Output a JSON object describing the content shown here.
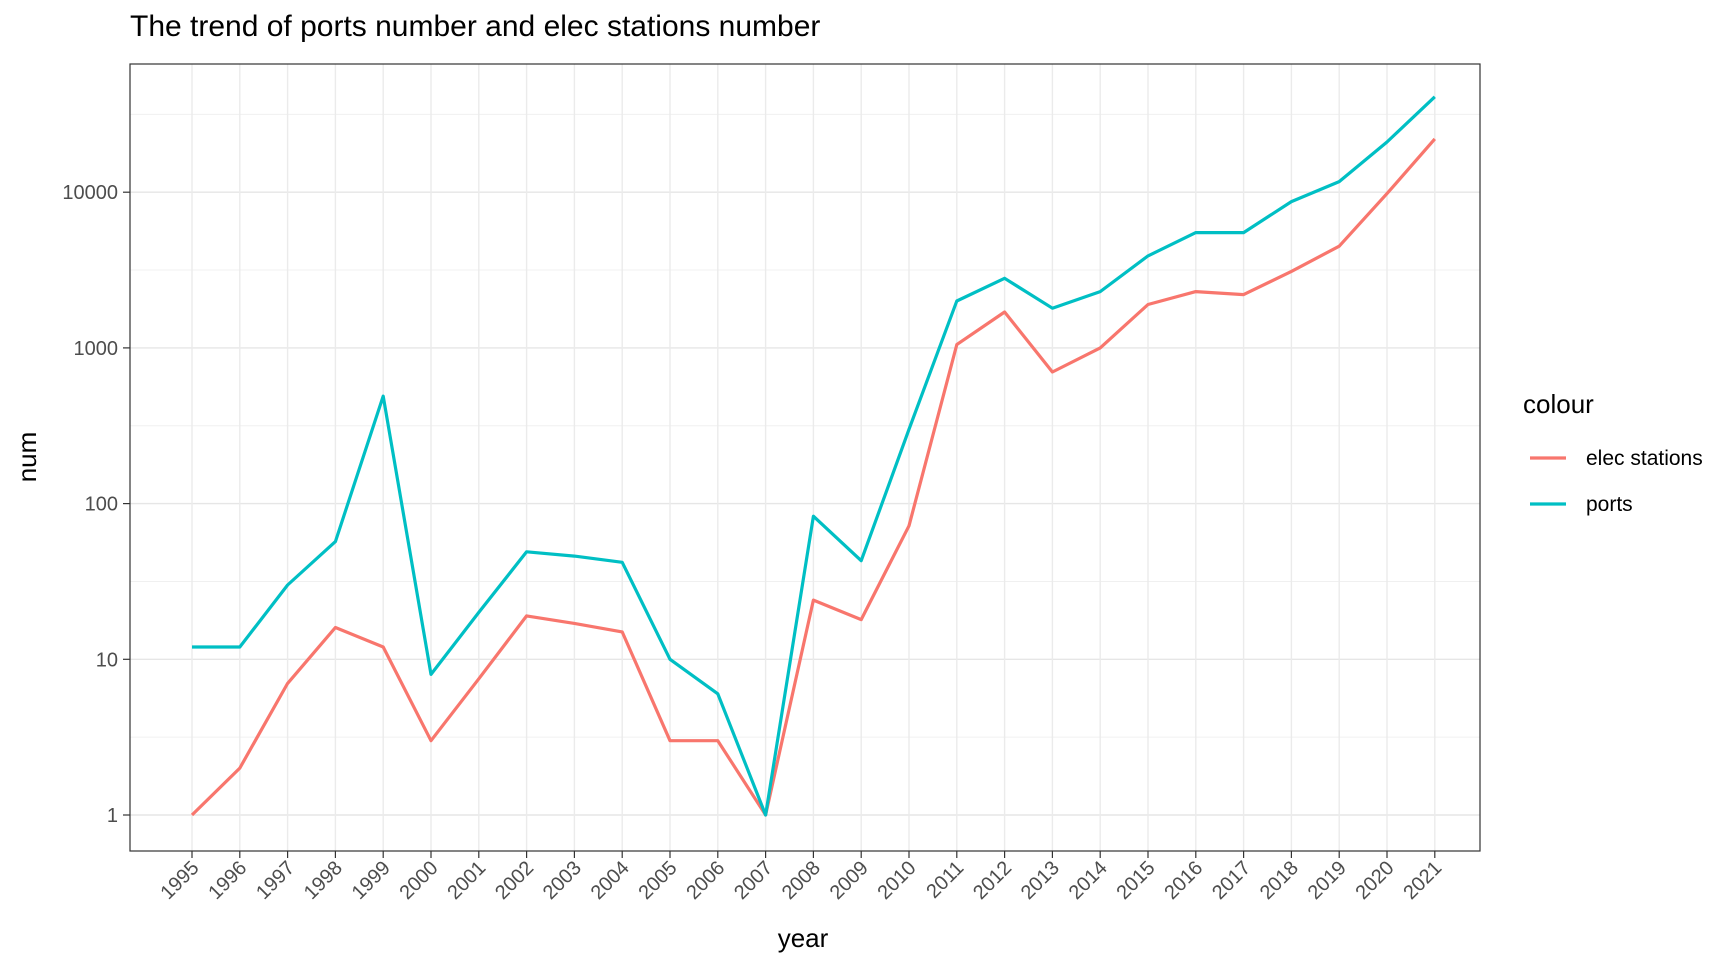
{
  "chart_data": {
    "type": "line",
    "title": "The trend of ports number and elec stations number",
    "xlabel": "year",
    "ylabel": "num",
    "y_scale": "log10",
    "y_ticks": [
      1,
      10,
      100,
      1000,
      10000
    ],
    "y_tick_labels": [
      "1",
      "10",
      "100",
      "1000",
      "10000"
    ],
    "x": [
      1995,
      1996,
      1997,
      1998,
      1999,
      2000,
      2001,
      2002,
      2003,
      2004,
      2005,
      2006,
      2007,
      2008,
      2009,
      2010,
      2011,
      2012,
      2013,
      2014,
      2015,
      2016,
      2017,
      2018,
      2019,
      2020,
      2021
    ],
    "x_tick_labels": [
      "1995",
      "1996",
      "1997",
      "1998",
      "1999",
      "2000",
      "2001",
      "2002",
      "2003",
      "2004",
      "2005",
      "2006",
      "2007",
      "2008",
      "2009",
      "2010",
      "2011",
      "2012",
      "2013",
      "2014",
      "2015",
      "2016",
      "2017",
      "2018",
      "2019",
      "2020",
      "2021"
    ],
    "grid": true,
    "legend": {
      "title": "colour",
      "position": "right"
    },
    "series": [
      {
        "name": "elec stations",
        "color": "#F8766D",
        "values": [
          1,
          2,
          7,
          16,
          12,
          3,
          7.5,
          19,
          17,
          15,
          3,
          3,
          1,
          24,
          18,
          72,
          1050,
          1700,
          700,
          1000,
          1900,
          2300,
          2200,
          3100,
          4500,
          9800,
          22000
        ]
      },
      {
        "name": "ports",
        "color": "#00BFC4",
        "values": [
          12,
          12,
          30,
          57,
          490,
          8,
          20,
          49,
          46,
          42,
          10,
          6,
          1,
          83,
          43,
          300,
          2000,
          2800,
          1800,
          2300,
          3900,
          5500,
          5500,
          8700,
          11700,
          21000,
          41000
        ]
      }
    ]
  }
}
